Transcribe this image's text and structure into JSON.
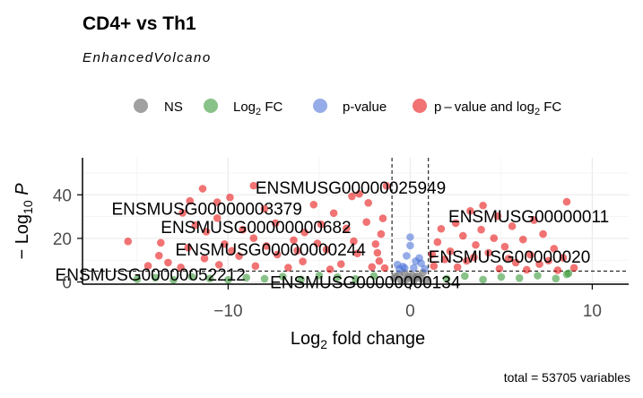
{
  "chart_data": {
    "type": "scatter",
    "title": "CD4+ vs Th1",
    "subtitle": "EnhancedVolcano",
    "xlabel": "Log2 fold change",
    "ylabel": "−Log10 P",
    "xlim": [
      -18,
      12
    ],
    "ylim": [
      -1,
      57
    ],
    "x_ticks": [
      -10,
      0,
      10
    ],
    "y_ticks": [
      0,
      20,
      40
    ],
    "grid": true,
    "fc_cutoff": 1,
    "p_cutoff_log10": 5,
    "caption": "total = 53705 variables",
    "legend_position": "top",
    "series": [
      {
        "name": "NS",
        "color": "#808080",
        "points": [
          [
            -0.2,
            1.2
          ],
          [
            0.3,
            2.0
          ],
          [
            -0.5,
            0.8
          ],
          [
            0.6,
            1.5
          ],
          [
            -0.8,
            2.6
          ],
          [
            0.1,
            3.2
          ],
          [
            0.9,
            0.9
          ],
          [
            -0.3,
            4.1
          ],
          [
            0.4,
            2.8
          ],
          [
            -0.6,
            3.5
          ],
          [
            0.7,
            4.3
          ],
          [
            -0.9,
            1.8
          ],
          [
            0.2,
            0.6
          ],
          [
            -0.1,
            2.2
          ]
        ]
      },
      {
        "name": "Log2 FC",
        "color": "#3a9a3a",
        "points": [
          [
            -10,
            1.0
          ],
          [
            -9,
            2.0
          ],
          [
            -8,
            1.5
          ],
          [
            -7,
            2.5
          ],
          [
            -6,
            1.2
          ],
          [
            -5,
            3.0
          ],
          [
            -4,
            2.2
          ],
          [
            -3,
            1.4
          ],
          [
            -2,
            2.8
          ],
          [
            -11,
            1.6
          ],
          [
            -12,
            2.4
          ],
          [
            -13,
            1.0
          ],
          [
            -14,
            2.0
          ],
          [
            -15,
            1.3
          ],
          [
            2,
            1.5
          ],
          [
            3,
            2.7
          ],
          [
            4,
            1.1
          ],
          [
            5,
            2.3
          ],
          [
            6,
            1.8
          ],
          [
            7,
            2.9
          ],
          [
            8,
            1.6
          ],
          [
            8.6,
            3.5
          ],
          [
            8.7,
            4.0
          ]
        ]
      },
      {
        "name": "p-value",
        "color": "#4f74d9",
        "points": [
          [
            0.0,
            20.6
          ],
          [
            0.0,
            16.7
          ],
          [
            -0.2,
            12.0
          ],
          [
            0.3,
            9.5
          ],
          [
            -0.4,
            7.1
          ],
          [
            0.6,
            8.6
          ],
          [
            0.2,
            6.5
          ],
          [
            -0.6,
            5.9
          ],
          [
            0.8,
            6.1
          ],
          [
            -0.7,
            8.0
          ],
          [
            0.5,
            11.0
          ],
          [
            -0.3,
            6.4
          ]
        ]
      },
      {
        "name": "p – value and log2 FC",
        "color": "#e60000",
        "points": [
          [
            -8.6,
            44.2
          ],
          [
            -1.3,
            44.1
          ],
          [
            -11.4,
            42.8
          ],
          [
            -9.9,
            38.8
          ],
          [
            -3.2,
            39.3
          ],
          [
            -2.8,
            40.4
          ],
          [
            -12.1,
            37.2
          ],
          [
            -12.5,
            31.7
          ],
          [
            -8.0,
            33.6
          ],
          [
            -10.6,
            36.6
          ],
          [
            -5.3,
            35.5
          ],
          [
            -2.3,
            36.3
          ],
          [
            -15.5,
            18.6
          ],
          [
            -13.7,
            18.0
          ],
          [
            -10.6,
            29.3
          ],
          [
            -4.2,
            31.6
          ],
          [
            -2.4,
            27.5
          ],
          [
            -7.4,
            27.0
          ],
          [
            -9.2,
            24.0
          ],
          [
            -11.2,
            23.1
          ],
          [
            -5.8,
            22.7
          ],
          [
            -3.5,
            24.6
          ],
          [
            -1.6,
            22.0
          ],
          [
            -1.9,
            17.4
          ],
          [
            -6.4,
            19.2
          ],
          [
            -8.6,
            20.1
          ],
          [
            -10.2,
            17.4
          ],
          [
            -12.2,
            15.8
          ],
          [
            -4.6,
            14.9
          ],
          [
            -2.9,
            13.1
          ],
          [
            -7.3,
            12.6
          ],
          [
            -9.4,
            11.9
          ],
          [
            -11.3,
            10.8
          ],
          [
            -13.3,
            8.9
          ],
          [
            -14.4,
            7.4
          ],
          [
            -13.8,
            12.1
          ],
          [
            -5.9,
            9.4
          ],
          [
            -3.8,
            8.2
          ],
          [
            -1.7,
            9.6
          ],
          [
            -2.1,
            6.9
          ],
          [
            -6.7,
            6.6
          ],
          [
            -8.5,
            7.3
          ],
          [
            -10.5,
            7.9
          ],
          [
            -12.6,
            6.7
          ],
          [
            -4.4,
            5.8
          ],
          [
            -1.4,
            6.4
          ],
          [
            -1.8,
            13.4
          ],
          [
            -3.1,
            18.7
          ],
          [
            -6.2,
            14.4
          ],
          [
            -9.8,
            14.3
          ],
          [
            -7.9,
            16.5
          ],
          [
            -5.1,
            17.7
          ],
          [
            -1.5,
            29.2
          ],
          [
            -4.9,
            26.5
          ],
          [
            -11.8,
            26.1
          ],
          [
            8.6,
            36.8
          ],
          [
            4.0,
            35.1
          ],
          [
            3.3,
            32.6
          ],
          [
            4.8,
            30.2
          ],
          [
            6.8,
            28.4
          ],
          [
            2.5,
            27.0
          ],
          [
            5.6,
            25.6
          ],
          [
            1.7,
            24.4
          ],
          [
            3.9,
            24.0
          ],
          [
            7.3,
            22.0
          ],
          [
            2.9,
            21.2
          ],
          [
            4.6,
            20.1
          ],
          [
            6.2,
            19.5
          ],
          [
            1.5,
            18.3
          ],
          [
            3.6,
            17.0
          ],
          [
            5.2,
            16.2
          ],
          [
            7.9,
            15.3
          ],
          [
            2.2,
            14.1
          ],
          [
            4.3,
            13.4
          ],
          [
            6.6,
            12.5
          ],
          [
            8.4,
            11.1
          ],
          [
            1.9,
            10.4
          ],
          [
            3.1,
            9.7
          ],
          [
            5.8,
            8.9
          ],
          [
            7.1,
            8.2
          ],
          [
            1.3,
            7.3
          ],
          [
            2.6,
            6.8
          ],
          [
            4.9,
            6.1
          ],
          [
            6.4,
            5.6
          ],
          [
            8.1,
            5.4
          ],
          [
            9.0,
            6.5
          ],
          [
            1.2,
            12.7
          ],
          [
            3.5,
            11.3
          ],
          [
            5.4,
            10.7
          ],
          [
            7.6,
            9.8
          ]
        ]
      }
    ],
    "annotations": [
      {
        "text": "ENSMUSG00000025949",
        "x": -8.5,
        "y": 40.5
      },
      {
        "text": "ENSMUSG00000003379",
        "x": -16.4,
        "y": 30.9
      },
      {
        "text": "ENSMUSG00000000682",
        "x": -13.7,
        "y": 22.4
      },
      {
        "text": "ENSMUSG00000000244",
        "x": -12.9,
        "y": 12.1
      },
      {
        "text": "ENSMUSG00000011",
        "x": 2.1,
        "y": 27.4
      },
      {
        "text": "ENSMUSG00000020",
        "x": 1.0,
        "y": 8.8
      },
      {
        "text": "ENSMUSG00000052212",
        "x": -19.5,
        "y": 0.6
      },
      {
        "text": "ENSMUSG00000000134",
        "x": -7.7,
        "y": -2.8
      }
    ]
  }
}
